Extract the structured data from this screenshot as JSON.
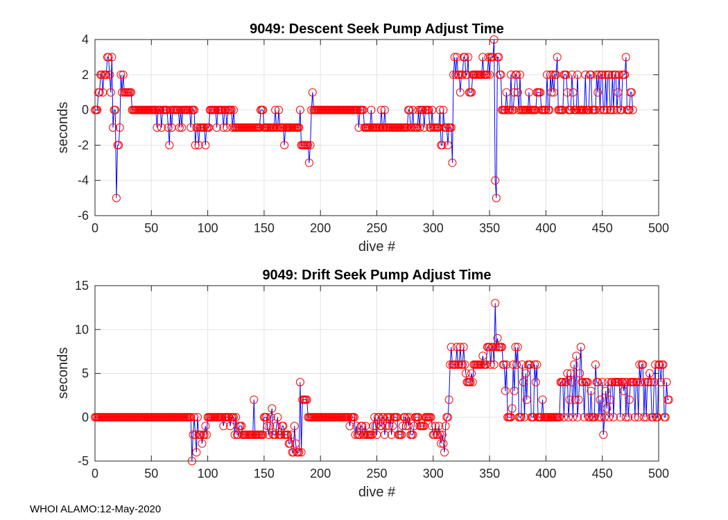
{
  "footer": "WHOI ALAMO:12-May-2020",
  "chart_data": [
    {
      "type": "line",
      "title": "9049: Descent Seek Pump Adjust Time",
      "xlabel": "dive #",
      "ylabel": "seconds",
      "xlim": [
        0,
        500
      ],
      "ylim": [
        -6,
        4
      ],
      "xticks": [
        0,
        50,
        100,
        150,
        200,
        250,
        300,
        350,
        400,
        450,
        500
      ],
      "yticks": [
        -6,
        -4,
        -2,
        0,
        2,
        4
      ],
      "grid": true,
      "line_color": "#0000ff",
      "marker_color": "#ff0000",
      "marker": "circle",
      "x_start": 0,
      "values": [
        0,
        0,
        0,
        1,
        1,
        2,
        2,
        1,
        2,
        2,
        2,
        3,
        3,
        2,
        1,
        3,
        -1,
        0,
        0,
        -5,
        -2,
        -2,
        -1,
        2,
        1,
        2,
        1,
        1,
        1,
        1,
        1,
        1,
        1,
        0,
        0,
        0,
        0,
        0,
        0,
        0,
        0,
        0,
        0,
        0,
        0,
        0,
        0,
        0,
        0,
        0,
        0,
        0,
        0,
        0,
        0,
        -1,
        0,
        0,
        0,
        -1,
        0,
        0,
        0,
        0,
        0,
        -1,
        -2,
        0,
        -1,
        0,
        0,
        0,
        0,
        0,
        0,
        -1,
        0,
        -1,
        0,
        0,
        0,
        0,
        0,
        0,
        0,
        -1,
        0,
        0,
        0,
        -2,
        -1,
        -1,
        -2,
        -1,
        -1,
        -1,
        -1,
        -1,
        -2,
        -1,
        -1,
        -1,
        0,
        0,
        0,
        0,
        0,
        0,
        -1,
        0,
        0,
        0,
        0,
        0,
        -1,
        0,
        0,
        -1,
        0,
        0,
        0,
        0,
        -1,
        0,
        -1,
        -1,
        -1,
        -1,
        -1,
        -1,
        -1,
        -1,
        -1,
        -1,
        -1,
        -1,
        -1,
        -1,
        -1,
        -1,
        -1,
        -1,
        -1,
        -1,
        -1,
        -1,
        -1,
        0,
        0,
        0,
        -1,
        -1,
        -1,
        -1,
        -1,
        -1,
        -1,
        -1,
        -1,
        -1,
        0,
        -1,
        -1,
        0,
        -1,
        -1,
        -1,
        -1,
        -2,
        -1,
        -1,
        -1,
        -1,
        -1,
        -1,
        -1,
        -1,
        -1,
        -1,
        -1,
        -1,
        -1,
        0,
        -2,
        -2,
        -2,
        -2,
        -2,
        -2,
        -2,
        -3,
        -2,
        0,
        1,
        0,
        0,
        0,
        0,
        0,
        0,
        0,
        0,
        0,
        0,
        0,
        0,
        0,
        0,
        0,
        0,
        0,
        0,
        0,
        0,
        0,
        0,
        0,
        0,
        0,
        0,
        0,
        0,
        0,
        0,
        0,
        0,
        0,
        0,
        0,
        0,
        0,
        0,
        0,
        0,
        -1,
        0,
        0,
        0,
        0,
        -1,
        -1,
        -1,
        -1,
        -1,
        -1,
        0,
        -1,
        -1,
        -1,
        -1,
        -1,
        -1,
        -1,
        -1,
        0,
        -1,
        -1,
        0,
        -1,
        -1,
        -1,
        -1,
        -1,
        -1,
        -1,
        -1,
        -1,
        -1,
        -1,
        -1,
        -1,
        -1,
        -1,
        -1,
        -1,
        -1,
        -1,
        -1,
        0,
        0,
        -1,
        -1,
        0,
        -1,
        -1,
        -1,
        -1,
        0,
        -1,
        0,
        0,
        0,
        -1,
        0,
        0,
        0,
        0,
        -1,
        -1,
        0,
        -1,
        -1,
        -1,
        -1,
        -1,
        -1,
        0,
        -2,
        -2,
        0,
        -1,
        -1,
        -1,
        -2,
        -1,
        -1,
        -1,
        -3,
        2,
        3,
        2,
        3,
        2,
        2,
        1,
        2,
        2,
        3,
        3,
        2,
        2,
        3,
        1,
        1,
        1,
        2,
        2,
        2,
        2,
        2,
        2,
        2,
        2,
        2,
        3,
        2,
        2,
        2,
        2,
        3,
        2,
        3,
        3,
        3,
        4,
        -4,
        -5,
        3,
        3,
        2,
        2,
        0,
        0,
        0,
        0,
        1,
        0,
        0,
        0,
        2,
        0,
        0,
        1,
        2,
        2,
        1,
        0,
        2,
        0,
        0,
        0,
        0,
        0,
        0,
        0,
        1,
        0,
        0,
        0,
        0,
        0,
        0,
        1,
        1,
        1,
        1,
        0,
        0,
        0,
        0,
        0,
        2,
        0,
        0,
        2,
        1,
        2,
        1,
        2,
        2,
        3,
        0,
        0,
        0,
        0,
        0,
        2,
        2,
        2,
        1,
        0,
        0,
        0,
        2,
        1,
        0,
        0,
        0,
        2,
        0,
        0,
        0,
        0,
        0,
        0,
        2,
        0,
        0,
        0,
        2,
        2,
        0,
        0,
        0,
        0,
        2,
        1,
        2,
        0,
        2,
        2,
        0,
        0,
        2,
        0,
        2,
        2,
        0,
        0,
        2,
        0,
        2,
        2,
        0,
        1,
        2,
        0,
        0,
        2,
        2,
        2,
        3,
        0,
        0,
        0,
        1,
        1,
        0
      ]
    },
    {
      "type": "line",
      "title": "9049: Drift Seek Pump Adjust Time",
      "xlabel": "dive #",
      "ylabel": "seconds",
      "xlim": [
        0,
        500
      ],
      "ylim": [
        -5,
        15
      ],
      "xticks": [
        0,
        50,
        100,
        150,
        200,
        250,
        300,
        350,
        400,
        450,
        500
      ],
      "yticks": [
        -5,
        0,
        5,
        10,
        15
      ],
      "grid": true,
      "line_color": "#0000ff",
      "marker_color": "#ff0000",
      "marker": "circle",
      "x_start": 0,
      "values": [
        0,
        0,
        0,
        0,
        0,
        0,
        0,
        0,
        0,
        0,
        0,
        0,
        0,
        0,
        0,
        0,
        0,
        0,
        0,
        0,
        0,
        0,
        0,
        0,
        0,
        0,
        0,
        0,
        0,
        0,
        0,
        0,
        0,
        0,
        0,
        0,
        0,
        0,
        0,
        0,
        0,
        0,
        0,
        0,
        0,
        0,
        0,
        0,
        0,
        0,
        0,
        0,
        0,
        0,
        0,
        0,
        0,
        0,
        0,
        0,
        0,
        0,
        0,
        0,
        0,
        0,
        0,
        0,
        0,
        0,
        0,
        0,
        0,
        0,
        0,
        0,
        0,
        0,
        0,
        0,
        0,
        0,
        0,
        0,
        0,
        0,
        -5,
        -2,
        0,
        -2,
        -4,
        0,
        -2,
        -2,
        -2,
        -3,
        -2,
        -2,
        -1,
        -2,
        0,
        0,
        0,
        0,
        0,
        0,
        0,
        0,
        0,
        0,
        0,
        0,
        0,
        0,
        -1,
        0,
        0,
        0,
        0,
        0,
        -1,
        0,
        0,
        0,
        -2,
        0,
        -2,
        -2,
        -1,
        -1,
        -1,
        -2,
        -2,
        -2,
        -2,
        -2,
        -2,
        -2,
        -2,
        -2,
        -2,
        2,
        -2,
        -2,
        -2,
        -2,
        -2,
        -2,
        -2,
        -2,
        0,
        0,
        0,
        -1,
        -2,
        -1,
        0,
        1,
        -2,
        -2,
        -2,
        -1,
        0,
        -2,
        -2,
        -2,
        -1,
        -1,
        -2,
        -2,
        -2,
        -2,
        -3,
        -3,
        -2,
        -4,
        -4,
        -1,
        -3,
        -4,
        -4,
        -4,
        4,
        -4,
        2,
        2,
        2,
        2,
        2,
        0,
        0,
        0,
        0,
        0,
        0,
        0,
        0,
        0,
        0,
        0,
        0,
        0,
        0,
        0,
        0,
        0,
        0,
        0,
        0,
        0,
        0,
        0,
        0,
        0,
        0,
        0,
        0,
        0,
        0,
        0,
        0,
        0,
        0,
        0,
        0,
        0,
        -1,
        0,
        0,
        0,
        0,
        -2,
        -1,
        -2,
        -2,
        -2,
        -1,
        -1,
        -2,
        -2,
        -1,
        -2,
        -2,
        -2,
        -2,
        -2,
        -2,
        -1,
        0,
        -1,
        -2,
        0,
        0,
        -1,
        -1,
        0,
        0,
        -2,
        -1,
        0,
        0,
        -1,
        0,
        -2,
        -1,
        0,
        0,
        0,
        0,
        -2,
        -2,
        -2,
        -2,
        -1,
        0,
        0,
        -1,
        0,
        -1,
        0,
        -2,
        -2,
        -2,
        -1,
        0,
        0,
        0,
        0,
        -1,
        -1,
        -1,
        -1,
        -1,
        0,
        0,
        0,
        0,
        0,
        0,
        -1,
        -2,
        -2,
        -1,
        -2,
        -2,
        -1,
        -2,
        -3,
        -2,
        -3,
        -4,
        -1,
        0,
        0,
        2,
        6,
        8,
        6,
        6,
        6,
        6,
        8,
        6,
        6,
        8,
        6,
        6,
        8,
        6,
        5,
        4,
        4,
        4,
        4,
        5,
        4,
        6,
        6,
        6,
        6,
        6,
        6,
        6,
        6,
        7,
        6,
        6,
        6,
        8,
        8,
        8,
        6,
        8,
        8,
        6,
        13,
        8,
        9,
        8,
        8,
        8,
        8,
        6,
        6,
        3,
        6,
        0,
        0,
        0,
        0,
        1,
        6,
        3,
        8,
        6,
        8,
        0,
        0,
        0,
        6,
        4,
        0,
        5,
        2,
        6,
        6,
        6,
        0,
        0,
        0,
        6,
        4,
        6,
        0,
        0,
        0,
        0,
        2,
        0,
        0,
        0,
        0,
        0,
        0,
        0,
        0,
        0,
        0,
        0,
        0,
        0,
        0,
        0,
        4,
        4,
        4,
        0,
        4,
        4,
        5,
        0,
        2,
        5,
        4,
        0,
        6,
        2,
        7,
        0,
        2,
        5,
        8,
        4,
        4,
        0,
        4,
        4,
        4,
        0,
        0,
        3,
        0,
        0,
        0,
        6,
        4,
        4,
        0,
        2,
        0,
        4,
        -2,
        0,
        3,
        1,
        4,
        0,
        2,
        4,
        4,
        0,
        4,
        4,
        4,
        4,
        4,
        0,
        4,
        4,
        3,
        4,
        0,
        4,
        0,
        2,
        4,
        4,
        4,
        4,
        0,
        4,
        4,
        0,
        6,
        4,
        6,
        6,
        0,
        4,
        0,
        4,
        4,
        5,
        4,
        0,
        0,
        4,
        6,
        0,
        0,
        6,
        6,
        4,
        6,
        6,
        0,
        0,
        4,
        2,
        2
      ]
    }
  ]
}
